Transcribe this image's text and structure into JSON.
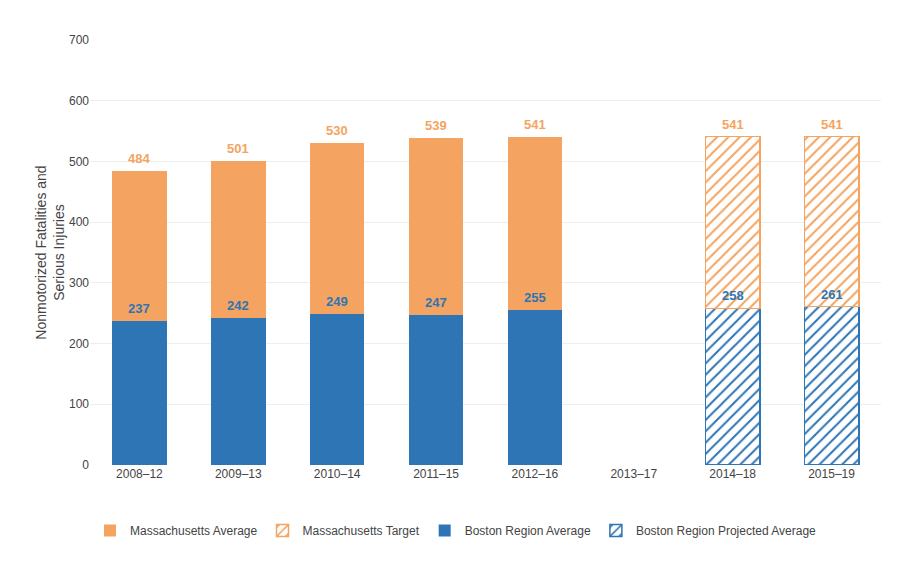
{
  "chart_data": {
    "type": "bar",
    "stacked": true,
    "categories": [
      "2008–12",
      "2009–13",
      "2010–14",
      "2011–15",
      "2012–16",
      "2013–17",
      "2014–18",
      "2015–19"
    ],
    "series": [
      {
        "name": "Boston Region Average",
        "color": "#2e75b6",
        "marker": "solid",
        "data_labels": true,
        "values": [
          237,
          242,
          249,
          247,
          255,
          null,
          null,
          null
        ]
      },
      {
        "name": "Massachusetts Average",
        "color": "#f4a460",
        "marker": "solid",
        "data_labels": false,
        "values": [
          247,
          259,
          281,
          292,
          286,
          null,
          null,
          null
        ]
      },
      {
        "name": "Boston Region Projected Average",
        "color": "#2e75b6",
        "marker": "hatch",
        "data_labels": true,
        "values": [
          null,
          null,
          null,
          null,
          null,
          null,
          258,
          261
        ]
      },
      {
        "name": "Massachusetts Target",
        "color": "#f4a460",
        "marker": "hatch",
        "data_labels": false,
        "values": [
          null,
          null,
          null,
          null,
          null,
          null,
          283,
          280
        ]
      }
    ],
    "totals": {
      "color": "#f4a460",
      "values": [
        484,
        501,
        530,
        539,
        541,
        null,
        541,
        541
      ]
    },
    "ylabel": "Nonmotorized Fatalities and\nSerious Injuries",
    "ylim": [
      0,
      700
    ],
    "yticks": [
      0,
      100,
      200,
      300,
      400,
      500,
      600,
      700
    ],
    "grid": true,
    "legend": "bottom"
  }
}
